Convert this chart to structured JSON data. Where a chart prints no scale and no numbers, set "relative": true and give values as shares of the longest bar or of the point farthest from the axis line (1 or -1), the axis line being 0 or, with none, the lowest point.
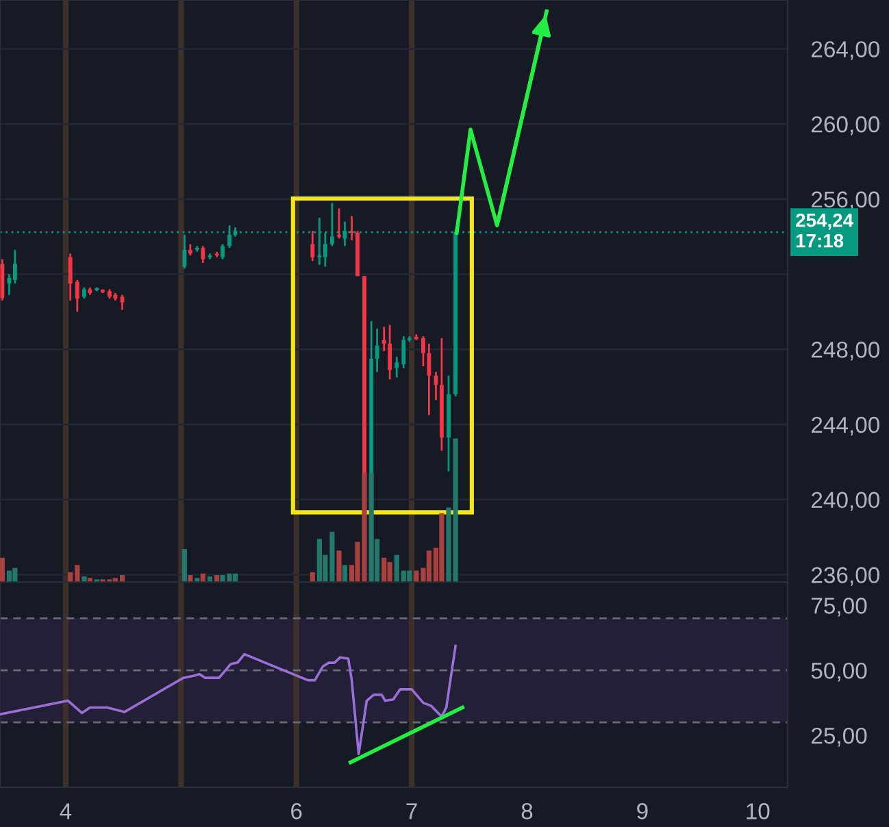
{
  "chart_data": [
    {
      "type": "candlestick",
      "x": [
        3.45,
        3.51,
        3.56,
        4.04,
        4.1,
        4.16,
        4.21,
        4.27,
        4.32,
        4.38,
        4.43,
        4.49,
        5.03,
        5.08,
        5.14,
        5.19,
        5.25,
        5.31,
        5.36,
        5.42,
        5.47,
        6.14,
        6.2,
        6.25,
        6.31,
        6.37,
        6.42,
        6.48,
        6.53,
        6.59,
        6.65,
        6.7,
        6.76,
        6.81,
        6.87,
        6.93,
        6.98,
        7.04,
        7.1,
        7.15,
        7.21,
        7.26,
        7.32,
        7.38
      ],
      "ohlc": [
        [
          252.55,
          252.8,
          250.6,
          250.73
        ],
        [
          251.5,
          252.0,
          250.9,
          251.8
        ],
        [
          251.7,
          253.3,
          251.5,
          252.55
        ],
        [
          252.9,
          253.1,
          250.6,
          251.5
        ],
        [
          251.6,
          251.7,
          250.0,
          250.7
        ],
        [
          250.8,
          251.3,
          250.7,
          251.2
        ],
        [
          251.2,
          251.3,
          250.9,
          251.0
        ],
        [
          251.2,
          251.3,
          251.1,
          251.2
        ],
        [
          251.1,
          251.2,
          251.0,
          251.1
        ],
        [
          251.1,
          251.2,
          250.7,
          250.8
        ],
        [
          250.9,
          251.0,
          250.6,
          250.7
        ],
        [
          250.8,
          250.9,
          250.1,
          250.5
        ],
        [
          252.4,
          254.1,
          252.3,
          253.3
        ],
        [
          253.3,
          253.6,
          253.0,
          253.1
        ],
        [
          253.3,
          253.5,
          253.2,
          253.4
        ],
        [
          253.4,
          253.5,
          252.6,
          252.8
        ],
        [
          252.9,
          253.1,
          252.8,
          253.0
        ],
        [
          253.1,
          253.2,
          252.9,
          253.0
        ],
        [
          252.9,
          253.6,
          252.8,
          253.5
        ],
        [
          253.5,
          254.6,
          253.4,
          254.1
        ],
        [
          254.1,
          254.5,
          254.0,
          254.3
        ],
        [
          253.6,
          254.3,
          252.7,
          252.9
        ],
        [
          252.9,
          255.0,
          252.5,
          253.0
        ],
        [
          252.9,
          254.2,
          252.4,
          253.6
        ],
        [
          253.6,
          255.8,
          253.5,
          254.0
        ],
        [
          254.1,
          255.5,
          253.9,
          254.0
        ],
        [
          253.9,
          254.8,
          253.5,
          254.3
        ],
        [
          254.3,
          255.1,
          253.8,
          254.2
        ],
        [
          254.2,
          254.3,
          251.9,
          251.9
        ],
        [
          251.9,
          251.9,
          239.4,
          241.3
        ],
        [
          241.3,
          249.5,
          240.0,
          247.5
        ],
        [
          247.5,
          249.1,
          246.8,
          248.2
        ],
        [
          248.5,
          249.2,
          247.9,
          248.3
        ],
        [
          248.3,
          249.3,
          246.4,
          246.9
        ],
        [
          247.0,
          247.6,
          246.5,
          247.3
        ],
        [
          247.2,
          248.7,
          247.0,
          248.5
        ],
        [
          248.5,
          248.7,
          248.4,
          248.6
        ],
        [
          248.6,
          248.8,
          248.5,
          248.6
        ],
        [
          248.6,
          248.7,
          247.1,
          247.8
        ],
        [
          247.8,
          248.3,
          244.5,
          246.6
        ],
        [
          246.6,
          246.8,
          245.3,
          246.1
        ],
        [
          246.1,
          248.6,
          242.6,
          243.3
        ],
        [
          243.3,
          246.6,
          241.5,
          245.6
        ],
        [
          245.6,
          254.4,
          245.5,
          254.24
        ]
      ],
      "colors": [
        "#f23645",
        "#089981",
        "#089981",
        "#f23645",
        "#f23645",
        "#089981",
        "#f23645",
        "#089981",
        "#f23645",
        "#f23645",
        "#f23645",
        "#f23645",
        "#089981",
        "#f23645",
        "#089981",
        "#f23645",
        "#089981",
        "#f23645",
        "#089981",
        "#089981",
        "#089981",
        "#f23645",
        "#089981",
        "#089981",
        "#089981",
        "#f23645",
        "#089981",
        "#f23645",
        "#f23645",
        "#f23645",
        "#089981",
        "#089981",
        "#f23645",
        "#f23645",
        "#089981",
        "#089981",
        "#089981",
        "#f23645",
        "#f23645",
        "#f23645",
        "#f23645",
        "#f23645",
        "#089981",
        "#089981"
      ],
      "series": [
        {
          "type": "line",
          "color": "#22ee44",
          "x": [
            7.39,
            7.51,
            7.74,
            8.17
          ],
          "values": [
            254.2,
            259.7,
            254.6,
            266.0
          ]
        }
      ],
      "xlim": [
        3.43,
        10.26
      ],
      "ylim": [
        235.6,
        266.6
      ],
      "yticks": [
        {
          "value": 236,
          "label": "236,00"
        },
        {
          "value": 240,
          "label": "240,00"
        },
        {
          "value": 244,
          "label": "244,00"
        },
        {
          "value": 248,
          "label": "248,00"
        },
        {
          "value": 252,
          "label": null
        },
        {
          "value": 256,
          "label": "256,00"
        },
        {
          "value": 260,
          "label": "260,00"
        },
        {
          "value": 264,
          "label": "264,00"
        }
      ],
      "ref_lines": [
        {
          "axis": "x",
          "value": 4,
          "color": "#3b302a"
        },
        {
          "axis": "x",
          "value": 5,
          "color": "#3b302a"
        },
        {
          "axis": "x",
          "value": 6,
          "color": "#3b302a"
        },
        {
          "axis": "x",
          "value": 7,
          "color": "#3b302a"
        },
        {
          "axis": "y",
          "value": 254.24,
          "label": "254,24\n17:18",
          "color": "#089981",
          "line_style": "dotted"
        }
      ],
      "grid": "y",
      "tick_labels": "y"
    },
    {
      "type": "bar",
      "relative": true,
      "x": [
        3.45,
        3.51,
        3.56,
        4.04,
        4.1,
        4.16,
        4.21,
        4.27,
        4.32,
        4.38,
        4.43,
        4.49,
        5.03,
        5.08,
        5.14,
        5.19,
        5.25,
        5.31,
        5.36,
        5.42,
        5.47,
        6.14,
        6.2,
        6.25,
        6.31,
        6.37,
        6.42,
        6.48,
        6.53,
        6.59,
        6.65,
        6.7,
        6.76,
        6.81,
        6.87,
        6.93,
        6.98,
        7.04,
        7.1,
        7.15,
        7.21,
        7.26,
        7.32,
        7.38
      ],
      "values": [
        0.17,
        0.08,
        0.1,
        0.07,
        0.12,
        0.04,
        0.03,
        0.02,
        0.02,
        0.02,
        0.03,
        0.05,
        0.23,
        0.05,
        0.03,
        0.06,
        0.04,
        0.05,
        0.05,
        0.06,
        0.06,
        0.07,
        0.3,
        0.19,
        0.35,
        0.22,
        0.12,
        0.12,
        0.28,
        0.76,
        0.76,
        0.3,
        0.17,
        0.14,
        0.19,
        0.08,
        0.08,
        0.08,
        0.1,
        0.22,
        0.24,
        0.48,
        0.52,
        1
      ],
      "colors": [
        "#a8413f",
        "#22786c",
        "#22786c",
        "#a8413f",
        "#a8413f",
        "#22786c",
        "#a8413f",
        "#22786c",
        "#a8413f",
        "#a8413f",
        "#a8413f",
        "#a8413f",
        "#22786c",
        "#a8413f",
        "#22786c",
        "#a8413f",
        "#22786c",
        "#a8413f",
        "#22786c",
        "#22786c",
        "#22786c",
        "#a8413f",
        "#22786c",
        "#22786c",
        "#22786c",
        "#a8413f",
        "#22786c",
        "#a8413f",
        "#a8413f",
        "#a8413f",
        "#22786c",
        "#22786c",
        "#a8413f",
        "#a8413f",
        "#22786c",
        "#22786c",
        "#22786c",
        "#a8413f",
        "#a8413f",
        "#a8413f",
        "#a8413f",
        "#a8413f",
        "#22786c",
        "#22786c"
      ],
      "xlim": [
        3.43,
        10.26
      ],
      "tick_labels": false
    },
    {
      "type": "line",
      "series": [
        {
          "color": "#9b6fd8",
          "x": [
            3.43,
            4.02,
            4.14,
            4.21,
            4.36,
            4.51,
            5.02,
            5.12,
            5.16,
            5.21,
            5.33,
            5.43,
            5.49,
            5.55,
            6.1,
            6.16,
            6.23,
            6.28,
            6.33,
            6.38,
            6.45,
            6.48,
            6.54,
            6.61,
            6.67,
            6.74,
            6.77,
            6.84,
            6.9,
            7.0,
            7.1,
            7.17,
            7.26,
            7.3,
            7.38
          ],
          "values": [
            33.1,
            38.3,
            33.6,
            35.7,
            35.7,
            34.0,
            47.1,
            48.0,
            48.5,
            47.1,
            47.1,
            52.4,
            53.0,
            56.2,
            46.2,
            46.2,
            51.5,
            52.9,
            52.9,
            55.0,
            54.5,
            46.2,
            17.8,
            38.3,
            40.6,
            40.6,
            38.3,
            38.8,
            42.7,
            42.7,
            37.5,
            36.3,
            32.2,
            35.7,
            59.4
          ]
        },
        {
          "color": "#22ee44",
          "x": [
            6.47,
            7.44
          ],
          "values": [
            14.6,
            35.7
          ]
        }
      ],
      "xlim": [
        3.43,
        10.26
      ],
      "ylim": [
        5,
        83.9
      ],
      "xticks": [
        4,
        6,
        7,
        8,
        9,
        10
      ],
      "yticks": [
        {
          "value": 25,
          "label": "25,00"
        },
        {
          "value": 50,
          "label": "50,00"
        },
        {
          "value": 75,
          "label": "75,00"
        }
      ],
      "ref_lines": [
        {
          "axis": "x",
          "value": 4,
          "color": "#3b302a"
        },
        {
          "axis": "x",
          "value": 5,
          "color": "#3b302a"
        },
        {
          "axis": "x",
          "value": 6,
          "color": "#3b302a"
        },
        {
          "axis": "x",
          "value": 7,
          "color": "#3b302a"
        },
        {
          "axis": "y",
          "value": 70,
          "color": "#6a6a78",
          "line_style": "dashed"
        },
        {
          "axis": "y",
          "value": 50,
          "color": "#6a6a78",
          "line_style": "dashed"
        },
        {
          "axis": "y",
          "value": 30,
          "color": "#6a6a78",
          "line_style": "dashed"
        }
      ],
      "bands": [
        {
          "axis": "y",
          "from": 30,
          "to": 70,
          "color": "#231f36"
        }
      ]
    }
  ]
}
